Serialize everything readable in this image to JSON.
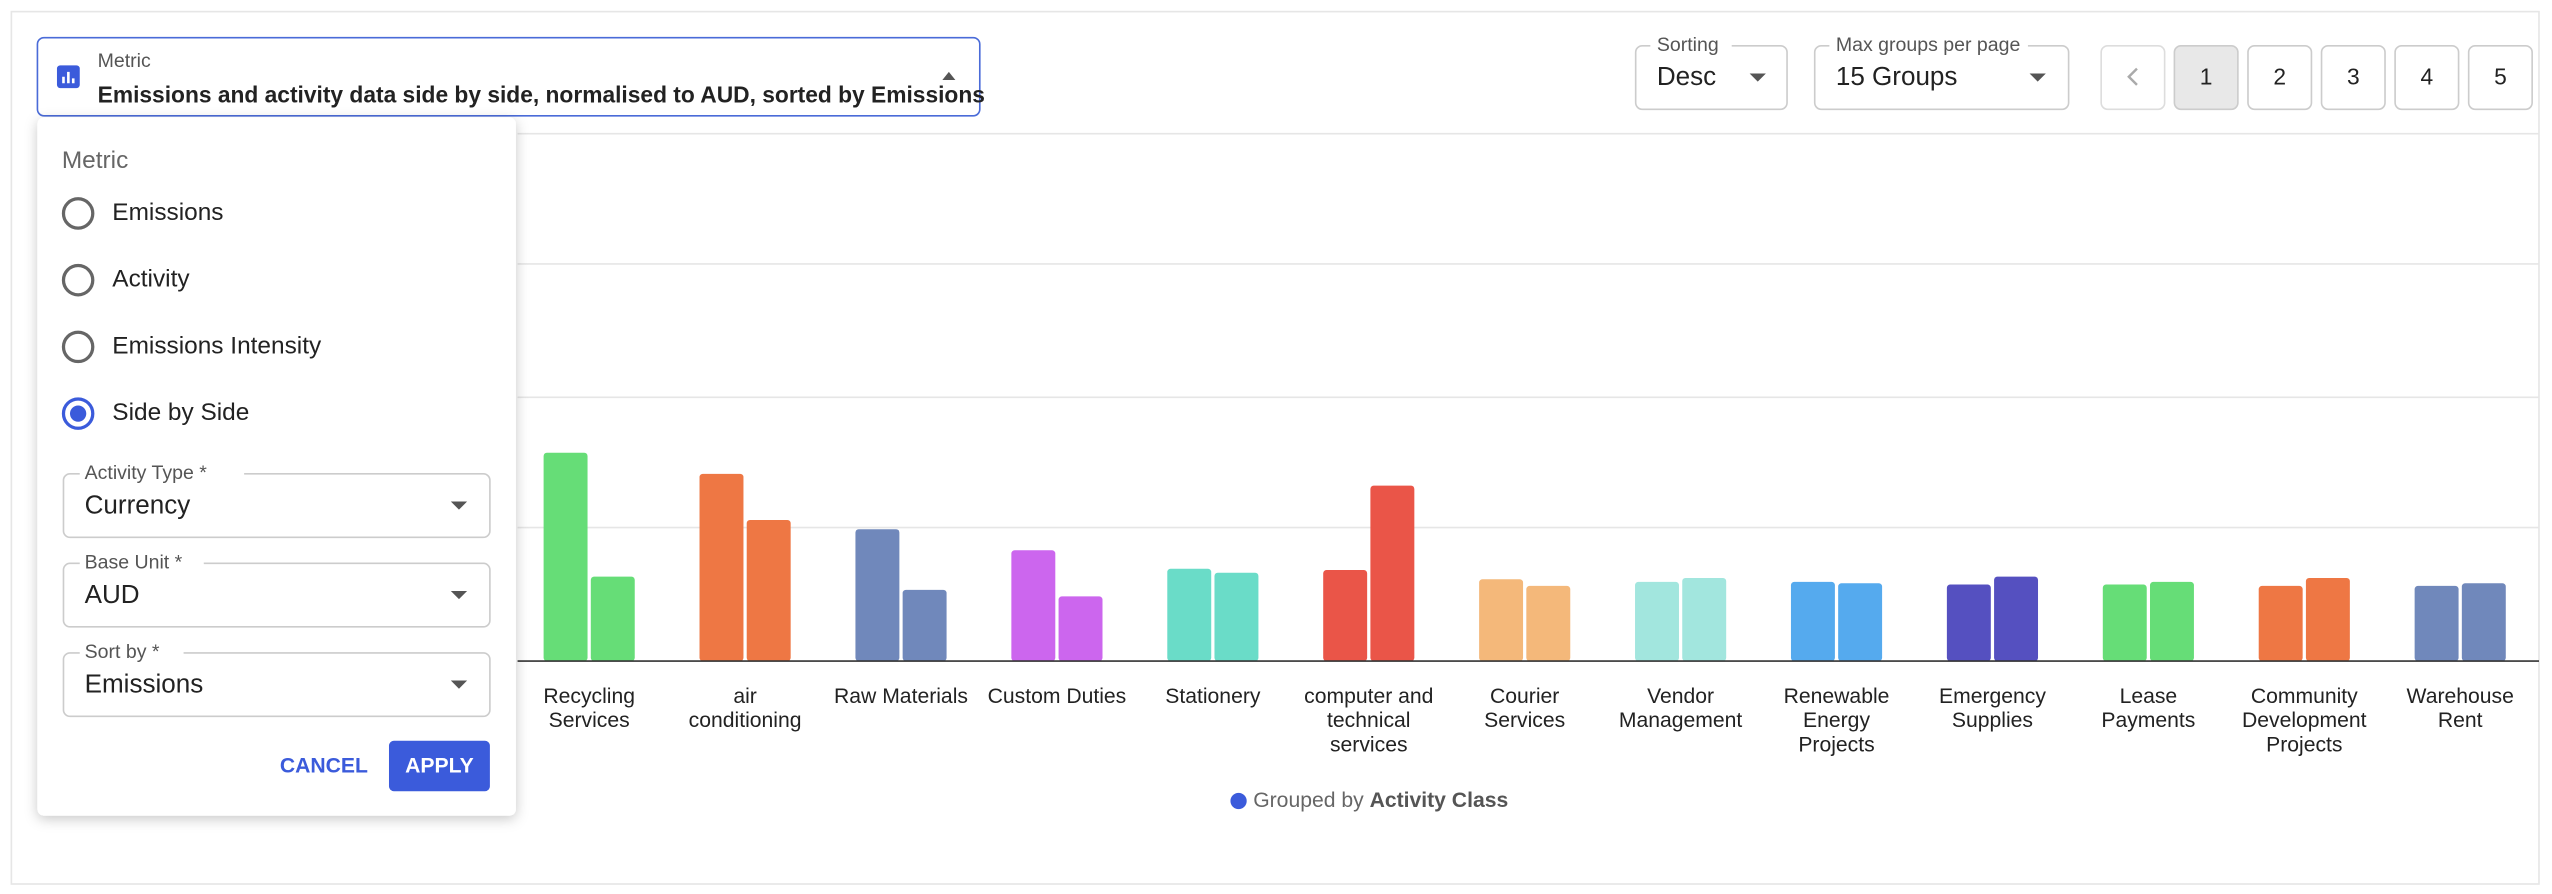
{
  "metric_select": {
    "label": "Metric",
    "value": "Emissions and activity data side by side, normalised to AUD, sorted by Emissions"
  },
  "sorting": {
    "label": "Sorting",
    "value": "Desc"
  },
  "max_groups": {
    "label": "Max groups per page",
    "value": "15 Groups"
  },
  "pagination": {
    "pages": [
      1,
      2,
      3,
      4,
      5
    ],
    "current": 1
  },
  "metric_panel": {
    "title": "Metric",
    "options": [
      "Emissions",
      "Activity",
      "Emissions Intensity",
      "Side by Side"
    ],
    "selected": 3,
    "fields": [
      {
        "label": "Activity Type *",
        "value": "Currency"
      },
      {
        "label": "Base Unit *",
        "value": "AUD"
      },
      {
        "label": "Sort by *",
        "value": "Emissions"
      }
    ],
    "cancel": "CANCEL",
    "apply": "APPLY"
  },
  "chart_data": {
    "type": "bar",
    "categories": [
      "Recycling Services",
      "air conditioning",
      "Raw Materials",
      "Custom Duties",
      "Stationery",
      "computer and technical services",
      "Courier Services",
      "Vendor Management",
      "Renewable Energy Projects",
      "Emergency Supplies",
      "Lease Payments",
      "Community Development Projects",
      "Warehouse Rent"
    ],
    "colors": [
      "#66dd77",
      "#ee7744",
      "#7088bb",
      "#cc66ee",
      "#6adcc8",
      "#ea5548",
      "#f4b87a",
      "#a2e6de",
      "#55aaee",
      "#5550c0",
      "#66dd77",
      "#ee7744",
      "#7088bb"
    ],
    "series": [
      {
        "values": [
          1.58,
          1.42,
          1.0,
          0.84,
          0.7,
          0.69,
          0.62,
          0.6,
          0.6,
          0.58,
          0.58,
          0.57,
          0.57
        ]
      },
      {
        "values": [
          0.64,
          1.07,
          0.54,
          0.49,
          0.67,
          1.33,
          0.57,
          0.63,
          0.59,
          0.64,
          0.6,
          0.63,
          0.59
        ]
      }
    ],
    "ylim": [
      0,
      4
    ],
    "footer": {
      "prefix": "Grouped by",
      "value": "Activity Class"
    }
  }
}
